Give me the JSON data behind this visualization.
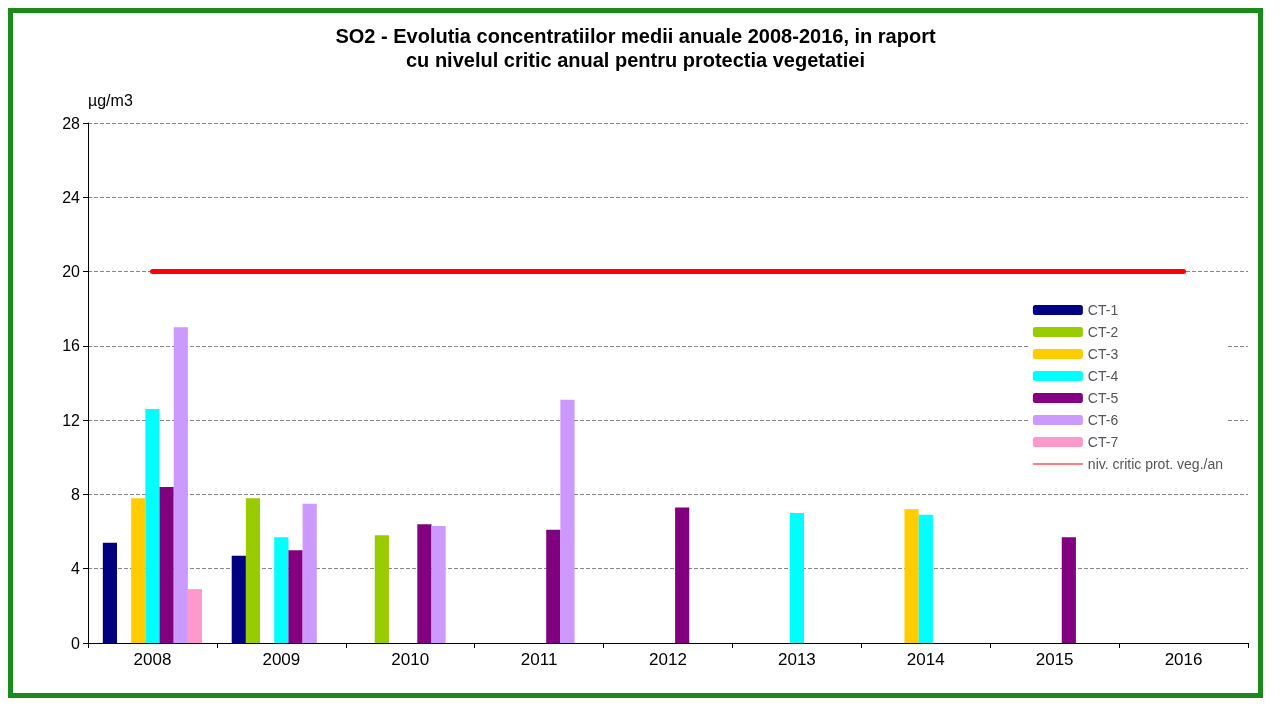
{
  "chart_data": {
    "type": "bar",
    "title": "SO2 - Evolutia concentratiilor medii anuale 2008-2016, in raport\ncu nivelul critic anual pentru protectia vegetatiei",
    "ylabel": "µg/m3",
    "categories": [
      "2008",
      "2009",
      "2010",
      "2011",
      "2012",
      "2013",
      "2014",
      "2015",
      "2016"
    ],
    "series": [
      {
        "name": "CT-1",
        "color": "#000080",
        "values": [
          5.4,
          4.7,
          null,
          null,
          null,
          null,
          null,
          null,
          null
        ]
      },
      {
        "name": "CT-2",
        "color": "#99cc00",
        "values": [
          null,
          7.8,
          5.8,
          null,
          null,
          null,
          null,
          null,
          null
        ]
      },
      {
        "name": "CT-3",
        "color": "#ffcc00",
        "values": [
          7.8,
          null,
          null,
          null,
          null,
          null,
          7.2,
          null,
          null
        ]
      },
      {
        "name": "CT-4",
        "color": "#00ffff",
        "values": [
          12.6,
          5.7,
          null,
          null,
          null,
          7.0,
          6.9,
          null,
          null
        ]
      },
      {
        "name": "CT-5",
        "color": "#800080",
        "values": [
          8.4,
          5.0,
          6.4,
          6.1,
          7.3,
          null,
          null,
          5.7,
          null
        ]
      },
      {
        "name": "CT-6",
        "color": "#cc99ff",
        "values": [
          17.0,
          7.5,
          6.3,
          13.1,
          null,
          null,
          null,
          null,
          null
        ]
      },
      {
        "name": "CT-7",
        "color": "#ff99cc",
        "values": [
          2.9,
          null,
          null,
          null,
          null,
          null,
          null,
          null,
          null
        ]
      },
      {
        "name": "niv. critic prot. veg./an",
        "type": "line",
        "color": "#ff0000",
        "marker": "none",
        "values": [
          20,
          20,
          20,
          20,
          20,
          20,
          20,
          20,
          20
        ]
      }
    ],
    "ylim": [
      0,
      28
    ],
    "yticks": [
      0,
      4,
      8,
      12,
      16,
      20,
      24,
      28
    ],
    "grid": "y",
    "legend": "right"
  }
}
